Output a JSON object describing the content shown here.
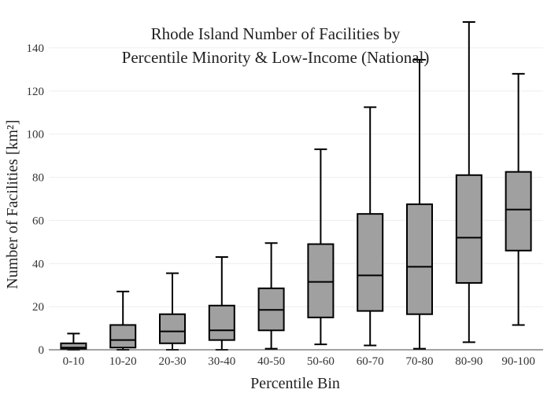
{
  "chart_data": {
    "type": "box",
    "title_lines": [
      "Rhode Island Number of Facilities by",
      "Percentile Minority & Low-Income (National)"
    ],
    "xlabel": "Percentile Bin",
    "ylabel": "Number of Facilities  [km²]",
    "categories": [
      "0-10",
      "10-20",
      "20-30",
      "30-40",
      "40-50",
      "50-60",
      "60-70",
      "70-80",
      "80-90",
      "90-100"
    ],
    "boxes": [
      {
        "min": 0,
        "q1": 0.3,
        "median": 1,
        "q3": 3,
        "max": 7.5
      },
      {
        "min": 0,
        "q1": 1,
        "median": 4.5,
        "q3": 11.5,
        "max": 27
      },
      {
        "min": 0,
        "q1": 3,
        "median": 8.5,
        "q3": 16.5,
        "max": 35.5
      },
      {
        "min": 0,
        "q1": 4.5,
        "median": 9,
        "q3": 20.5,
        "max": 43
      },
      {
        "min": 0.5,
        "q1": 9,
        "median": 18.5,
        "q3": 28.5,
        "max": 49.5
      },
      {
        "min": 2.5,
        "q1": 15,
        "median": 31.5,
        "q3": 49,
        "max": 93
      },
      {
        "min": 2,
        "q1": 18,
        "median": 34.5,
        "q3": 63,
        "max": 112.5
      },
      {
        "min": 0.5,
        "q1": 16.5,
        "median": 38.5,
        "q3": 67.5,
        "max": 134.5
      },
      {
        "min": 3.5,
        "q1": 31,
        "median": 52,
        "q3": 81,
        "max": 152
      },
      {
        "min": 11.5,
        "q1": 46,
        "median": 65,
        "q3": 82.5,
        "max": 128
      }
    ],
    "ylim": [
      0,
      152
    ],
    "yticks": [
      0,
      20,
      40,
      60,
      80,
      100,
      120,
      140
    ],
    "grid": "horizontal",
    "box_fill": "#a0a0a0",
    "line_color": "#000000",
    "grid_color": "#eeeeee"
  }
}
